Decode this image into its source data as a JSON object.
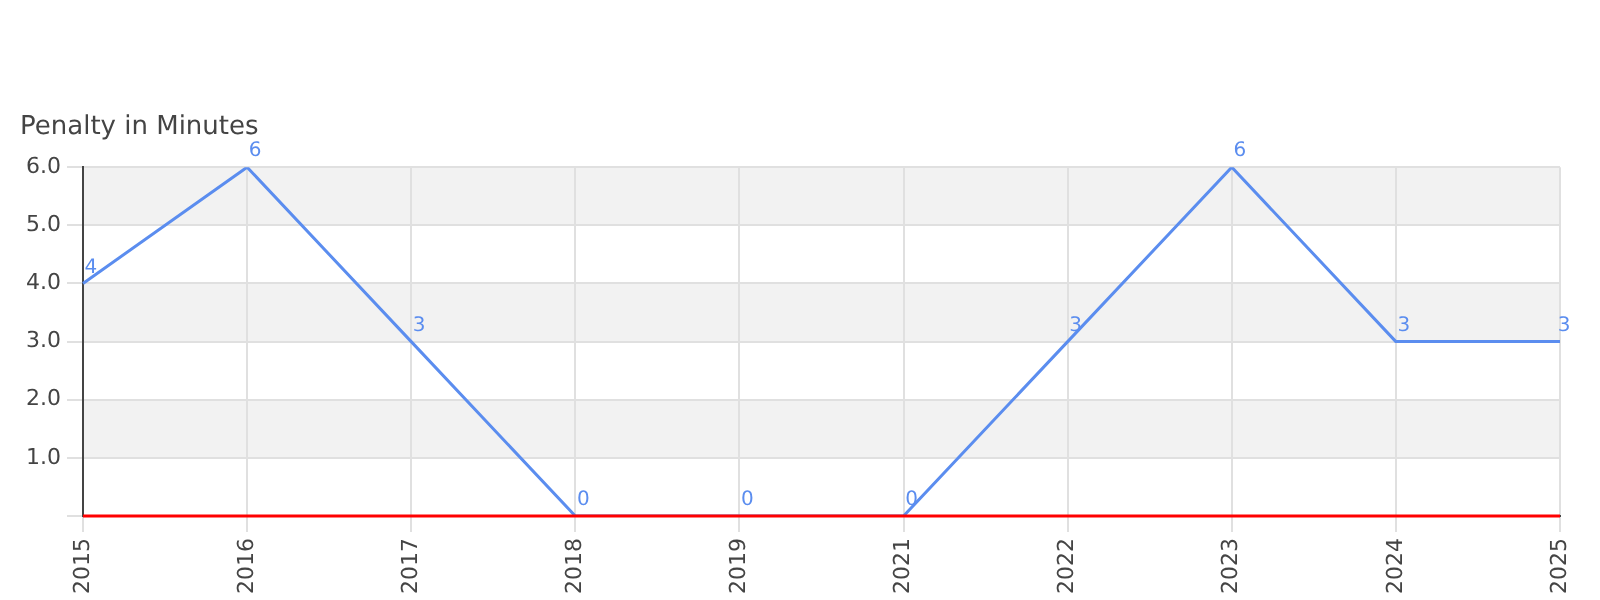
{
  "chart_data": {
    "type": "line",
    "ylabel": "Penalty in Minutes",
    "categories": [
      "2015",
      "2016",
      "2017",
      "2018",
      "2019",
      "2021",
      "2022",
      "2023",
      "2024",
      "2025"
    ],
    "series": [
      {
        "color": "#5b8def",
        "values": [
          4,
          6,
          3,
          0,
          0,
          0,
          3,
          6,
          3,
          3
        ]
      }
    ],
    "ylim": [
      0,
      6
    ],
    "yticks": [
      {
        "value": 0,
        "label": null
      },
      {
        "value": 1,
        "label": "1.0"
      },
      {
        "value": 2,
        "label": "2.0"
      },
      {
        "value": 3,
        "label": "3.0"
      },
      {
        "value": 4,
        "label": "4.0"
      },
      {
        "value": 5,
        "label": "5.0"
      },
      {
        "value": 6,
        "label": "6.0"
      }
    ],
    "ref_lines": [
      {
        "axis": "y",
        "value": 0,
        "color": "#ff0000"
      }
    ],
    "grid": true,
    "legend": false,
    "marker": "none",
    "line_style": "solid",
    "data_labels": true
  }
}
